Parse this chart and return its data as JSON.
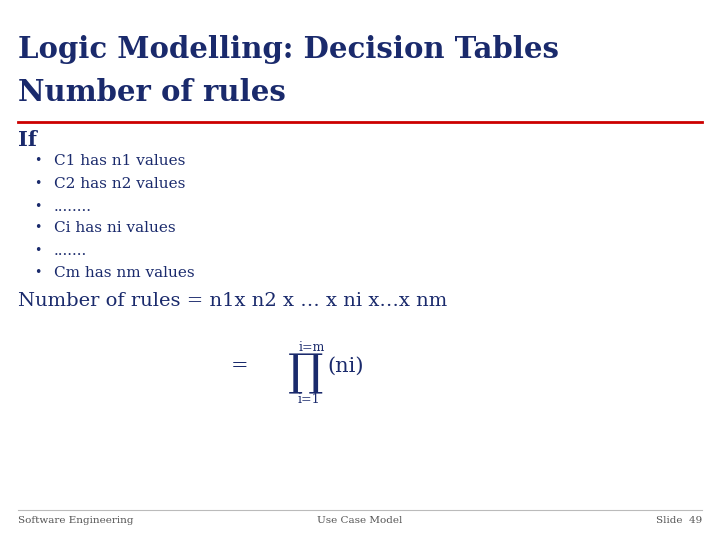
{
  "title_line1": "Logic Modelling: Decision Tables",
  "title_line2": "Number of rules",
  "title_color": "#1a2a6c",
  "rule_color": "#cc0000",
  "body_color": "#1a2a6c",
  "footer_color": "#555555",
  "bg_color": "#ffffff",
  "section_header": "If",
  "bullets": [
    {
      "text": "C1 has n1 values"
    },
    {
      "text": "C2 has n2 values"
    },
    {
      "text": "........"
    },
    {
      "text": "Ci has ni values"
    },
    {
      "text": "......."
    },
    {
      "text": "Cm has nm values"
    }
  ],
  "formula_text": "Number of rules = n1x n2 x … x ni x…x nm",
  "formula_top": "i=m",
  "formula_bot": "i=1",
  "footer_left": "Software Engineering",
  "footer_center": "Use Case Model",
  "footer_right": "Slide  49"
}
